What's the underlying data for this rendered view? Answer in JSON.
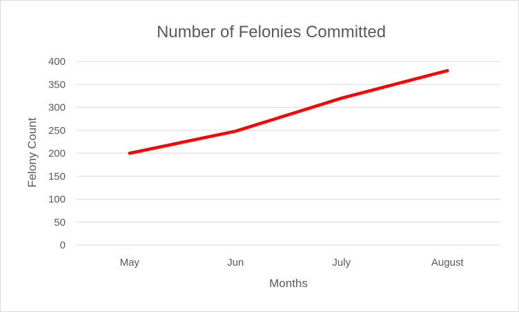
{
  "chart_data": {
    "type": "line",
    "title": "Number of Felonies Committed",
    "xlabel": "Months",
    "ylabel": "Felony Count",
    "categories": [
      "May",
      "Jun",
      "July",
      "August"
    ],
    "series": [
      {
        "values": [
          200,
          248,
          320,
          380
        ],
        "color": "#ff0000"
      }
    ],
    "ylim": [
      0,
      400
    ],
    "yticks": [
      0,
      50,
      100,
      150,
      200,
      250,
      300,
      350,
      400
    ],
    "grid": true,
    "legend": "none"
  }
}
